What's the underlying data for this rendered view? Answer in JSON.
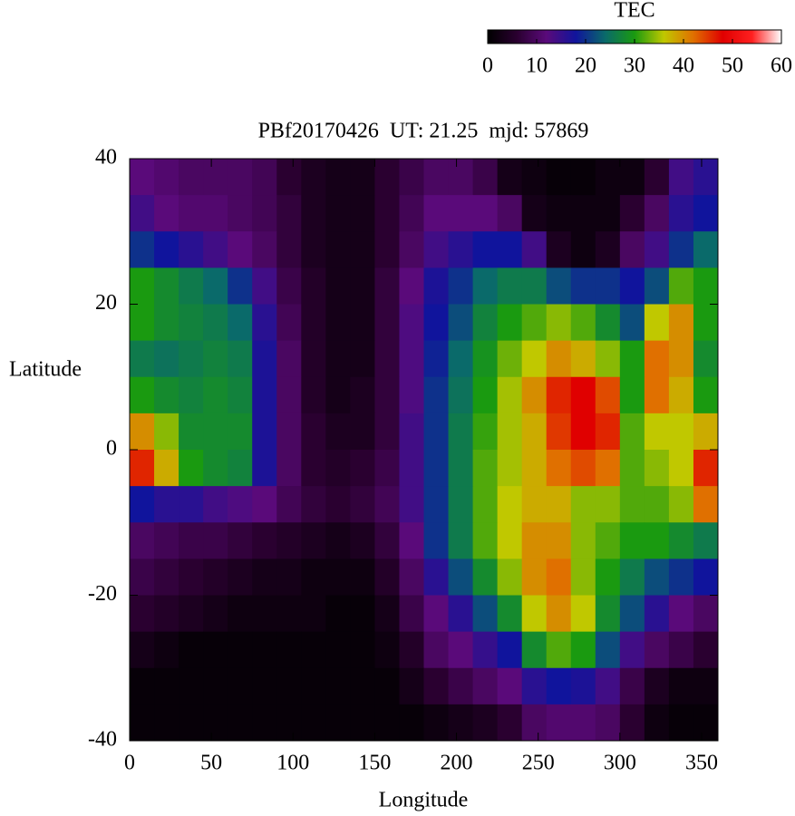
{
  "chart_data": {
    "type": "heatmap",
    "title": "PBf20170426  UT: 21.25  mjd: 57869",
    "xlabel": "Longitude",
    "ylabel": "Latitude",
    "xlim": [
      0,
      360
    ],
    "xticks": [
      0,
      50,
      100,
      150,
      200,
      250,
      300,
      350
    ],
    "ylim": [
      -40,
      40
    ],
    "yticks": [
      -40,
      -20,
      0,
      20,
      40
    ],
    "x": [
      7.5,
      22.5,
      37.5,
      52.5,
      67.5,
      82.5,
      97.5,
      112.5,
      127.5,
      142.5,
      157.5,
      172.5,
      187.5,
      202.5,
      217.5,
      232.5,
      247.5,
      262.5,
      277.5,
      292.5,
      307.5,
      322.5,
      337.5,
      352.5
    ],
    "y": [
      37.5,
      32.5,
      27.5,
      22.5,
      17.5,
      12.5,
      7.5,
      2.5,
      -2.5,
      -7.5,
      -12.5,
      -17.5,
      -22.5,
      -27.5,
      -32.5,
      -37.5
    ],
    "values": [
      [
        12,
        11,
        10,
        10,
        10,
        9,
        6,
        4,
        3,
        3,
        6,
        8,
        10,
        10,
        8,
        3,
        2,
        1,
        1,
        2,
        2,
        6,
        14,
        16
      ],
      [
        14,
        12,
        11,
        11,
        10,
        9,
        7,
        4,
        3,
        3,
        6,
        9,
        12,
        12,
        12,
        10,
        3,
        2,
        2,
        2,
        6,
        10,
        16,
        18
      ],
      [
        20,
        18,
        16,
        14,
        12,
        10,
        7,
        4,
        3,
        3,
        6,
        10,
        14,
        16,
        18,
        18,
        14,
        4,
        2,
        4,
        10,
        14,
        20,
        24
      ],
      [
        30,
        28,
        26,
        24,
        20,
        14,
        8,
        5,
        3,
        3,
        7,
        12,
        17,
        20,
        24,
        26,
        26,
        22,
        20,
        20,
        18,
        22,
        32,
        30
      ],
      [
        30,
        28,
        27,
        26,
        24,
        16,
        9,
        5,
        3,
        3,
        7,
        13,
        18,
        22,
        27,
        30,
        32,
        34,
        32,
        28,
        22,
        36,
        40,
        30
      ],
      [
        26,
        25,
        26,
        27,
        26,
        17,
        10,
        5,
        3,
        3,
        7,
        13,
        19,
        24,
        29,
        33,
        36,
        40,
        38,
        34,
        30,
        42,
        40,
        28
      ],
      [
        30,
        28,
        27,
        28,
        27,
        17,
        10,
        5,
        3,
        4,
        7,
        13,
        20,
        25,
        30,
        35,
        40,
        46,
        48,
        44,
        30,
        42,
        38,
        30
      ],
      [
        40,
        34,
        28,
        28,
        28,
        17,
        10,
        6,
        4,
        4,
        7,
        14,
        20,
        26,
        31,
        35,
        38,
        45,
        48,
        46,
        32,
        36,
        36,
        38
      ],
      [
        46,
        38,
        30,
        28,
        27,
        17,
        10,
        6,
        5,
        6,
        8,
        14,
        20,
        26,
        32,
        35,
        38,
        42,
        44,
        42,
        32,
        34,
        36,
        46
      ],
      [
        18,
        16,
        16,
        14,
        13,
        12,
        9,
        7,
        6,
        7,
        9,
        14,
        20,
        26,
        32,
        36,
        38,
        38,
        34,
        34,
        32,
        32,
        34,
        42
      ],
      [
        10,
        9,
        8,
        8,
        7,
        6,
        5,
        4,
        3,
        4,
        7,
        12,
        20,
        26,
        32,
        36,
        40,
        40,
        34,
        32,
        30,
        30,
        28,
        26
      ],
      [
        8,
        7,
        6,
        5,
        4,
        3,
        3,
        2,
        2,
        2,
        5,
        10,
        16,
        22,
        28,
        34,
        40,
        42,
        34,
        30,
        26,
        22,
        20,
        18
      ],
      [
        6,
        5,
        4,
        3,
        2,
        2,
        2,
        2,
        1,
        1,
        3,
        8,
        12,
        16,
        22,
        28,
        36,
        40,
        36,
        28,
        22,
        16,
        12,
        10
      ],
      [
        3,
        2,
        1,
        1,
        1,
        1,
        1,
        1,
        1,
        1,
        2,
        5,
        10,
        12,
        15,
        18,
        28,
        32,
        30,
        22,
        14,
        10,
        8,
        6
      ],
      [
        1,
        1,
        1,
        1,
        1,
        1,
        1,
        1,
        1,
        1,
        1,
        3,
        6,
        8,
        10,
        12,
        16,
        18,
        17,
        14,
        8,
        4,
        2,
        2
      ],
      [
        1,
        1,
        1,
        1,
        1,
        1,
        1,
        1,
        1,
        1,
        1,
        1,
        2,
        3,
        4,
        6,
        10,
        11,
        11,
        10,
        6,
        2,
        1,
        1
      ]
    ],
    "colorbar": {
      "label": "TEC",
      "lim": [
        0,
        60
      ],
      "ticks": [
        0,
        10,
        20,
        30,
        40,
        50,
        60
      ],
      "colors": [
        "#000000",
        "#2a0030",
        "#5a0a7a",
        "#10149c",
        "#0a6a6a",
        "#1a9a10",
        "#c0c800",
        "#e07000",
        "#e00000",
        "#ff2020",
        "#ffffff"
      ]
    }
  }
}
